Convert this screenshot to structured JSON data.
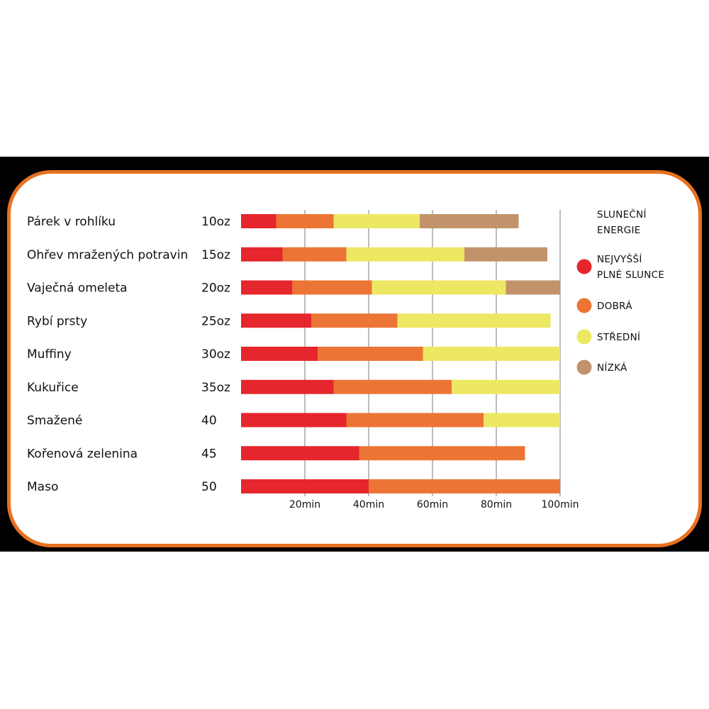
{
  "colors": {
    "border": "#e8711f",
    "nejvyssi": "#e5262c",
    "dobra": "#ec7535",
    "stredni": "#ede863",
    "nizka": "#c2936a",
    "grid": "#bdbdbd"
  },
  "chart_data": {
    "type": "bar",
    "stacked": true,
    "orientation": "horizontal",
    "categories": [
      "Párek v rohlíku",
      "Ohřev mražených potravin",
      "Vaječná omeleta",
      "Rybí prsty",
      "Muffiny",
      "Kukuřice",
      "Smažené",
      "Kořenová zelenina",
      "Maso"
    ],
    "quantities": [
      "10oz",
      "15oz",
      "20oz",
      "25oz",
      "30oz",
      "35oz",
      "40",
      "45",
      "50"
    ],
    "segment_ends_min": [
      [
        11,
        29,
        56,
        87
      ],
      [
        13,
        33,
        70,
        96
      ],
      [
        16,
        41,
        83,
        100
      ],
      [
        22,
        49,
        97
      ],
      [
        24,
        57,
        100
      ],
      [
        29,
        66,
        100
      ],
      [
        33,
        76,
        100
      ],
      [
        37,
        89
      ],
      [
        40,
        100
      ]
    ],
    "series": [
      {
        "name": "NEJVYŠŠÍ PLNÉ SLUNCE",
        "color": "#e5262c"
      },
      {
        "name": "DOBRÁ",
        "color": "#ec7535"
      },
      {
        "name": "STŘEDNÍ",
        "color": "#ede863"
      },
      {
        "name": "NÍZKÁ",
        "color": "#c2936a"
      }
    ],
    "xticks": [
      "20min",
      "40min",
      "60min",
      "80min",
      "100min"
    ],
    "xtick_values": [
      20,
      40,
      60,
      80,
      100
    ],
    "xlim": [
      0,
      100
    ],
    "grid": true,
    "legend_title": [
      "SLUNEČNÍ",
      "ENERGIE"
    ],
    "legend_labels": [
      [
        "NEJVYŠŠÍ",
        "PLNÉ SLUNCE"
      ],
      [
        "DOBRÁ"
      ],
      [
        "STŘEDNÍ"
      ],
      [
        "NÍZKÁ"
      ]
    ],
    "legend_position": "right"
  }
}
